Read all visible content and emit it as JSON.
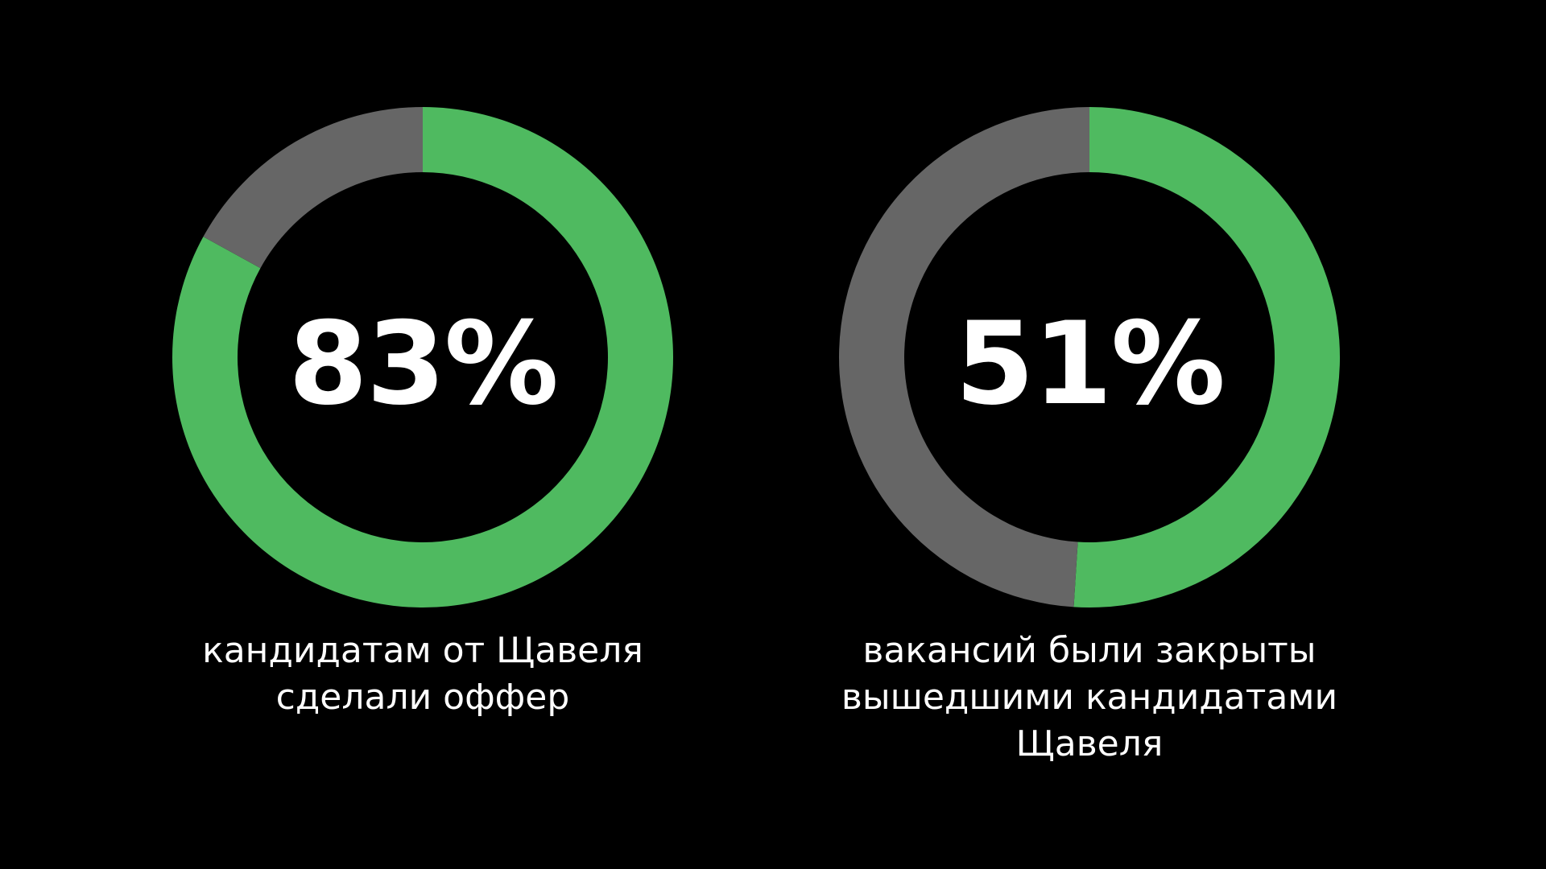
{
  "colors": {
    "background": "#000000",
    "filled": "#4fba60",
    "remaining": "#666666",
    "text": "#ffffff"
  },
  "chart_data": [
    {
      "type": "pie",
      "values": [
        83,
        17
      ],
      "unit": "%",
      "value_label": "83%",
      "caption": "кандидатам от Щавеля\nсделали оффер",
      "colors": [
        "#4fba60",
        "#666666"
      ]
    },
    {
      "type": "pie",
      "values": [
        51,
        49
      ],
      "unit": "%",
      "value_label": "51%",
      "caption": "вакансий были закрыты\nвышедшими кандидатами\nЩавеля",
      "colors": [
        "#4fba60",
        "#666666"
      ]
    }
  ]
}
